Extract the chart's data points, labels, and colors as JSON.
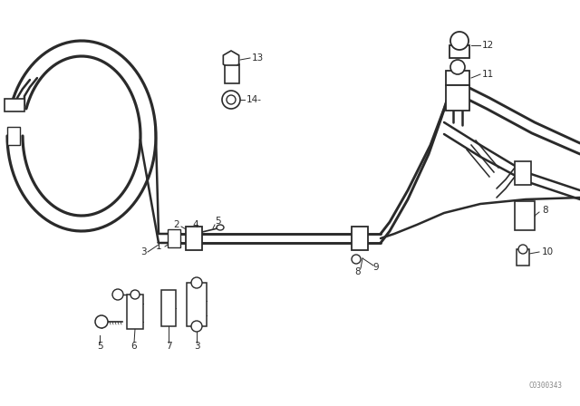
{
  "background_color": "#ffffff",
  "lc": "#2a2a2a",
  "watermark": "C0300343",
  "tube_lw": 1.8,
  "thin_lw": 0.9,
  "fs": 7.5
}
